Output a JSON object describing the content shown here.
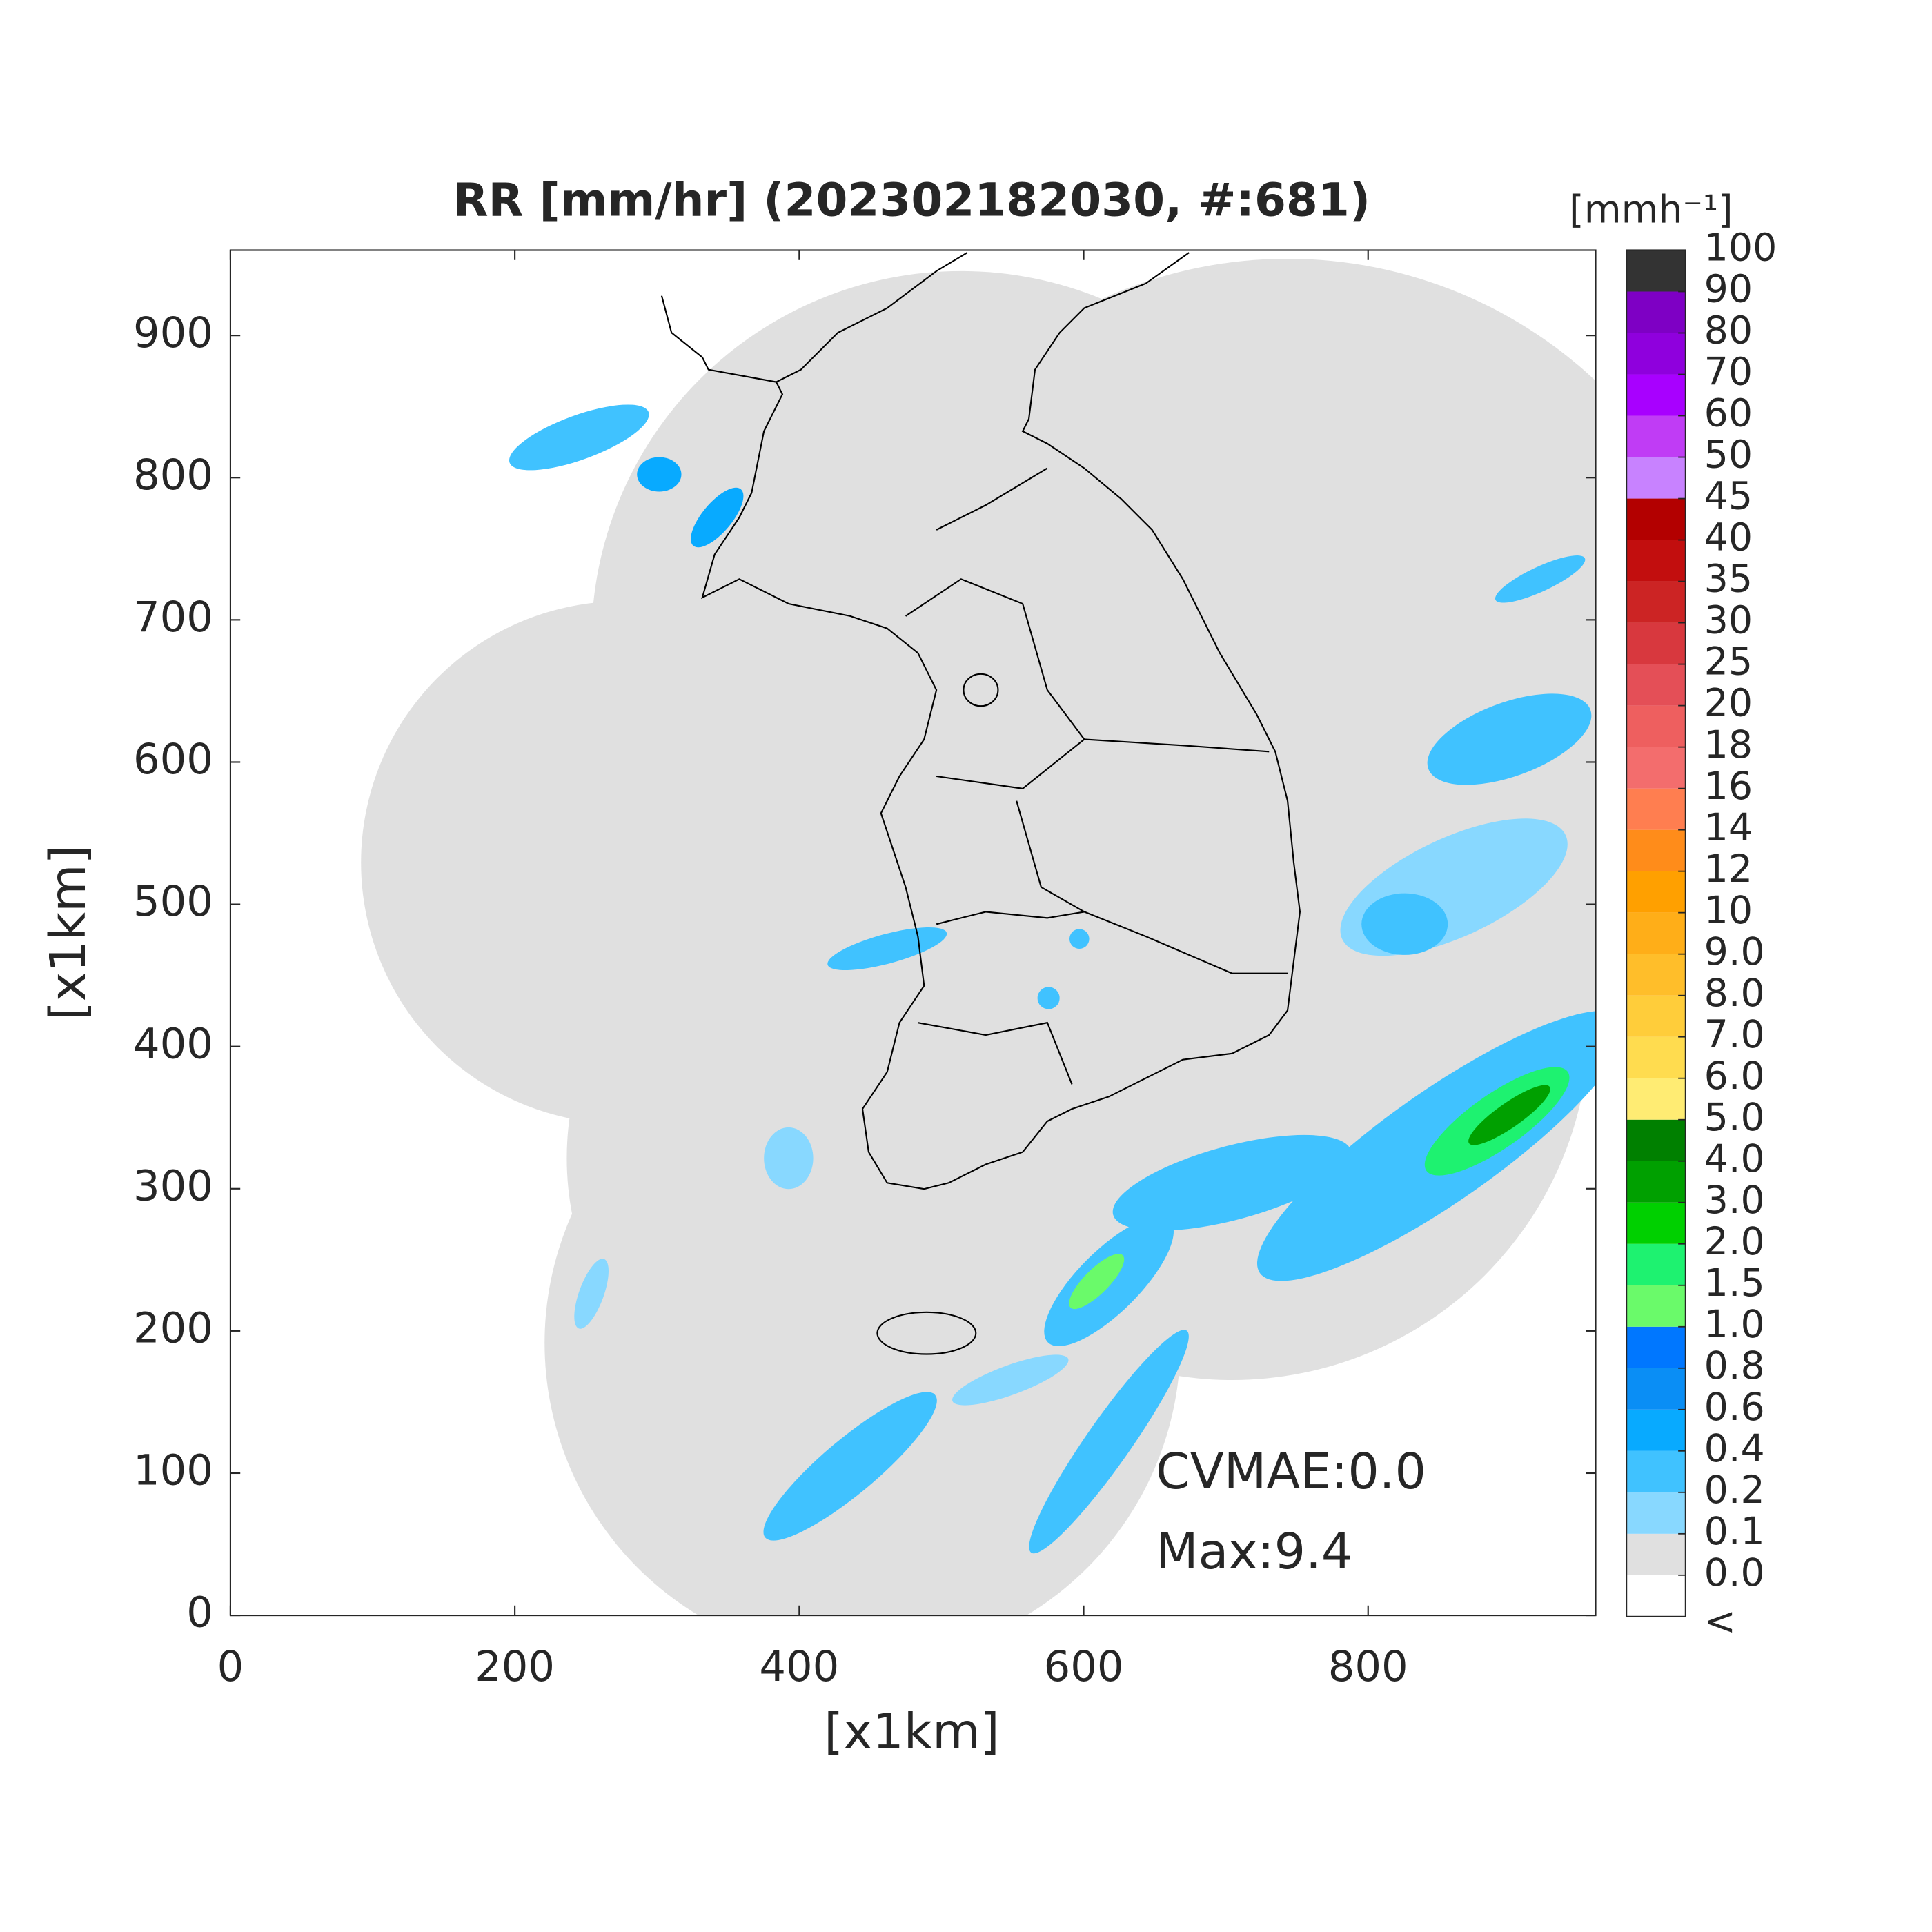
{
  "chart_data": {
    "type": "map",
    "title": "RR [mm/hr] (202302182030, #:681)",
    "x_label": "[x1km]",
    "y_label": "[x1km]",
    "xlim": [
      0,
      960
    ],
    "ylim": [
      0,
      960
    ],
    "xticks": [
      0,
      200,
      400,
      600,
      800
    ],
    "yticks": [
      0,
      100,
      200,
      300,
      400,
      500,
      600,
      700,
      800,
      900
    ],
    "annotations": [
      "CVMAE:0.0",
      "Max:9.4"
    ],
    "colorbar": {
      "title": "[mmh⁻¹]",
      "under_label": "<",
      "under_color": "#ffffff",
      "ticks": [
        {
          "value": 0,
          "label": "0.0"
        },
        0.1,
        0.2,
        0.4,
        0.6,
        0.8,
        {
          "value": 1,
          "label": "1.0"
        },
        1.5,
        {
          "value": 2,
          "label": "2.0"
        },
        {
          "value": 3,
          "label": "3.0"
        },
        {
          "value": 4,
          "label": "4.0"
        },
        {
          "value": 5,
          "label": "5.0"
        },
        {
          "value": 6,
          "label": "6.0"
        },
        {
          "value": 7,
          "label": "7.0"
        },
        {
          "value": 8,
          "label": "8.0"
        },
        {
          "value": 9,
          "label": "9.0"
        },
        10,
        12,
        14,
        16,
        18,
        20,
        25,
        30,
        35,
        40,
        45,
        50,
        60,
        70,
        80,
        90,
        100
      ],
      "colors": [
        "#e0e0e0",
        "#88d8ff",
        "#40c2ff",
        "#08aaff",
        "#0a8ef5",
        "#0077ff",
        "#6afa6a",
        "#1ef270",
        "#00d000",
        "#00a000",
        "#008000",
        "#ffec73",
        "#ffdc4f",
        "#ffcd3a",
        "#ffbe2a",
        "#ffae18",
        "#ffa000",
        "#ff8c1a",
        "#ff7e50",
        "#f36d6d",
        "#ee5f5f",
        "#e44f57",
        "#d8383e",
        "#cc2424",
        "#c20e0e",
        "#b30000",
        "#c882ff",
        "#c03cf5",
        "#a800ff",
        "#8f00dd",
        "#7e00c4",
        "#333333"
      ]
    }
  }
}
